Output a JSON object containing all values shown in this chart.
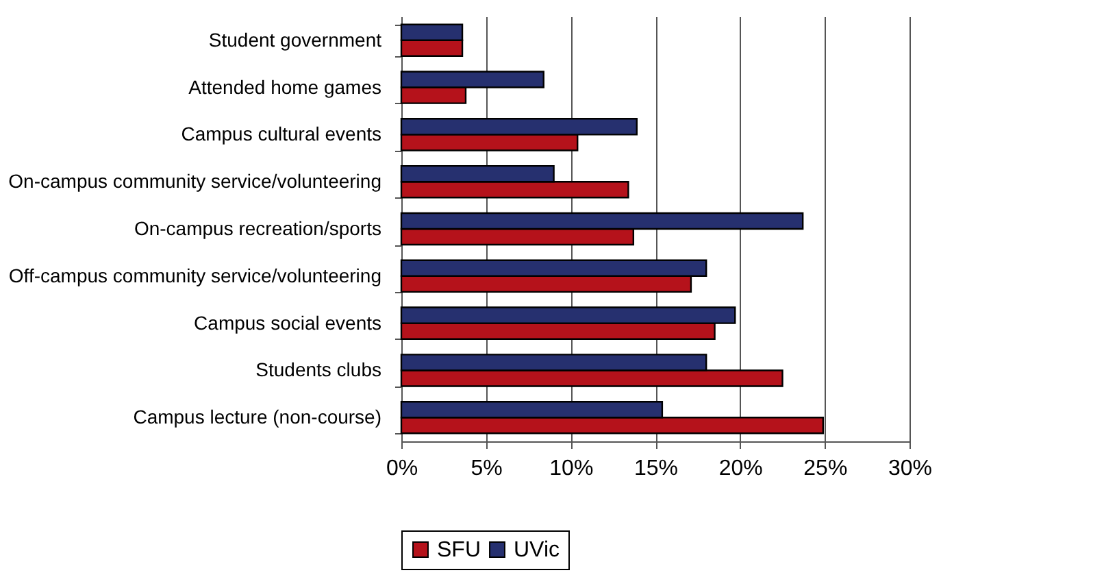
{
  "chart_data": {
    "type": "bar",
    "orientation": "horizontal",
    "categories": [
      "Student government",
      "Attended home games",
      "Campus cultural events",
      "On-campus community service/volunteering",
      "On-campus recreation/sports",
      "Off-campus community service/volunteering",
      "Campus social events",
      "Students clubs",
      "Campus lecture (non-course)"
    ],
    "series": [
      {
        "name": "SFU",
        "color": "#b5121b",
        "values": [
          3.6,
          3.8,
          10.4,
          13.4,
          13.7,
          17.1,
          18.5,
          22.5,
          24.9
        ]
      },
      {
        "name": "UVic",
        "color": "#26306f",
        "values": [
          3.6,
          8.4,
          13.9,
          9.0,
          23.7,
          18.0,
          19.7,
          18.0,
          15.4
        ]
      }
    ],
    "xlim": [
      0,
      30
    ],
    "xticks": [
      {
        "value": 0,
        "label": "0%"
      },
      {
        "value": 5,
        "label": "5%"
      },
      {
        "value": 10,
        "label": "10%"
      },
      {
        "value": 15,
        "label": "15%"
      },
      {
        "value": 20,
        "label": "20%"
      },
      {
        "value": 25,
        "label": "25%"
      },
      {
        "value": 30,
        "label": "30%"
      }
    ],
    "grid": "x",
    "legend": "bottom"
  }
}
